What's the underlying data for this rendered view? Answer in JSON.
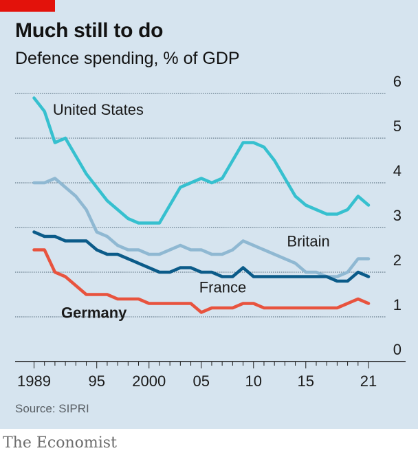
{
  "header": {
    "title": "Much still to do",
    "subtitle": "Defence spending, % of GDP"
  },
  "footer": {
    "source": "Source: SIPRI",
    "brand": "The Economist"
  },
  "colors": {
    "background": "#d6e4ef",
    "united_states": "#36c0cf",
    "britain": "#8fb8d2",
    "france": "#0b5b89",
    "germany": "#e8533e",
    "accent": "#e3120b"
  },
  "chart_data": {
    "type": "line",
    "ylabel_position": "right",
    "ylim": [
      0,
      6
    ],
    "xlim": [
      1988,
      2023
    ],
    "y_ticks": [
      0,
      1,
      2,
      3,
      4,
      5,
      6
    ],
    "x_ticks": [
      {
        "value": 1989,
        "label": "1989"
      },
      {
        "value": 1995,
        "label": "95"
      },
      {
        "value": 2000,
        "label": "2000"
      },
      {
        "value": 2005,
        "label": "05"
      },
      {
        "value": 2010,
        "label": "10"
      },
      {
        "value": 2015,
        "label": "15"
      },
      {
        "value": 2021,
        "label": "21"
      }
    ],
    "grid": "horizontal",
    "x": [
      1989,
      1990,
      1991,
      1992,
      1993,
      1994,
      1995,
      1996,
      1997,
      1998,
      1999,
      2000,
      2001,
      2002,
      2003,
      2004,
      2005,
      2006,
      2007,
      2008,
      2009,
      2010,
      2011,
      2012,
      2013,
      2014,
      2015,
      2016,
      2017,
      2018,
      2019,
      2020,
      2021
    ],
    "series": [
      {
        "name": "United States",
        "key": "united_states",
        "label_bold": false,
        "values": [
          5.9,
          5.6,
          4.9,
          5.0,
          4.6,
          4.2,
          3.9,
          3.6,
          3.4,
          3.2,
          3.1,
          3.1,
          3.1,
          3.5,
          3.9,
          4.0,
          4.1,
          4.0,
          4.1,
          4.5,
          4.9,
          4.9,
          4.8,
          4.5,
          4.1,
          3.7,
          3.5,
          3.4,
          3.3,
          3.3,
          3.4,
          3.7,
          3.5
        ]
      },
      {
        "name": "Britain",
        "key": "britain",
        "label_bold": false,
        "values": [
          4.0,
          4.0,
          4.1,
          3.9,
          3.7,
          3.4,
          2.9,
          2.8,
          2.6,
          2.5,
          2.5,
          2.4,
          2.4,
          2.5,
          2.6,
          2.5,
          2.5,
          2.4,
          2.4,
          2.5,
          2.7,
          2.6,
          2.5,
          2.4,
          2.3,
          2.2,
          2.0,
          2.0,
          1.9,
          1.9,
          2.0,
          2.3,
          2.3
        ]
      },
      {
        "name": "France",
        "key": "france",
        "label_bold": false,
        "values": [
          2.9,
          2.8,
          2.8,
          2.7,
          2.7,
          2.7,
          2.5,
          2.4,
          2.4,
          2.3,
          2.2,
          2.1,
          2.0,
          2.0,
          2.1,
          2.1,
          2.0,
          2.0,
          1.9,
          1.9,
          2.1,
          1.9,
          1.9,
          1.9,
          1.9,
          1.9,
          1.9,
          1.9,
          1.9,
          1.8,
          1.8,
          2.0,
          1.9
        ]
      },
      {
        "name": "Germany",
        "key": "germany",
        "label_bold": true,
        "values": [
          2.5,
          2.5,
          2.0,
          1.9,
          1.7,
          1.5,
          1.5,
          1.5,
          1.4,
          1.4,
          1.4,
          1.3,
          1.3,
          1.3,
          1.3,
          1.3,
          1.1,
          1.2,
          1.2,
          1.2,
          1.3,
          1.3,
          1.2,
          1.2,
          1.2,
          1.2,
          1.2,
          1.2,
          1.2,
          1.2,
          1.3,
          1.4,
          1.3
        ]
      }
    ],
    "series_labels": [
      {
        "series": "united_states",
        "text": "United States",
        "x": 1990.8,
        "y": 5.52
      },
      {
        "series": "britain",
        "text": "Britain",
        "x": 2013.2,
        "y": 2.58
      },
      {
        "series": "france",
        "text": "France",
        "x": 2004.8,
        "y": 1.55
      },
      {
        "series": "germany",
        "text": "Germany",
        "x": 1991.6,
        "y": 0.98
      }
    ]
  }
}
